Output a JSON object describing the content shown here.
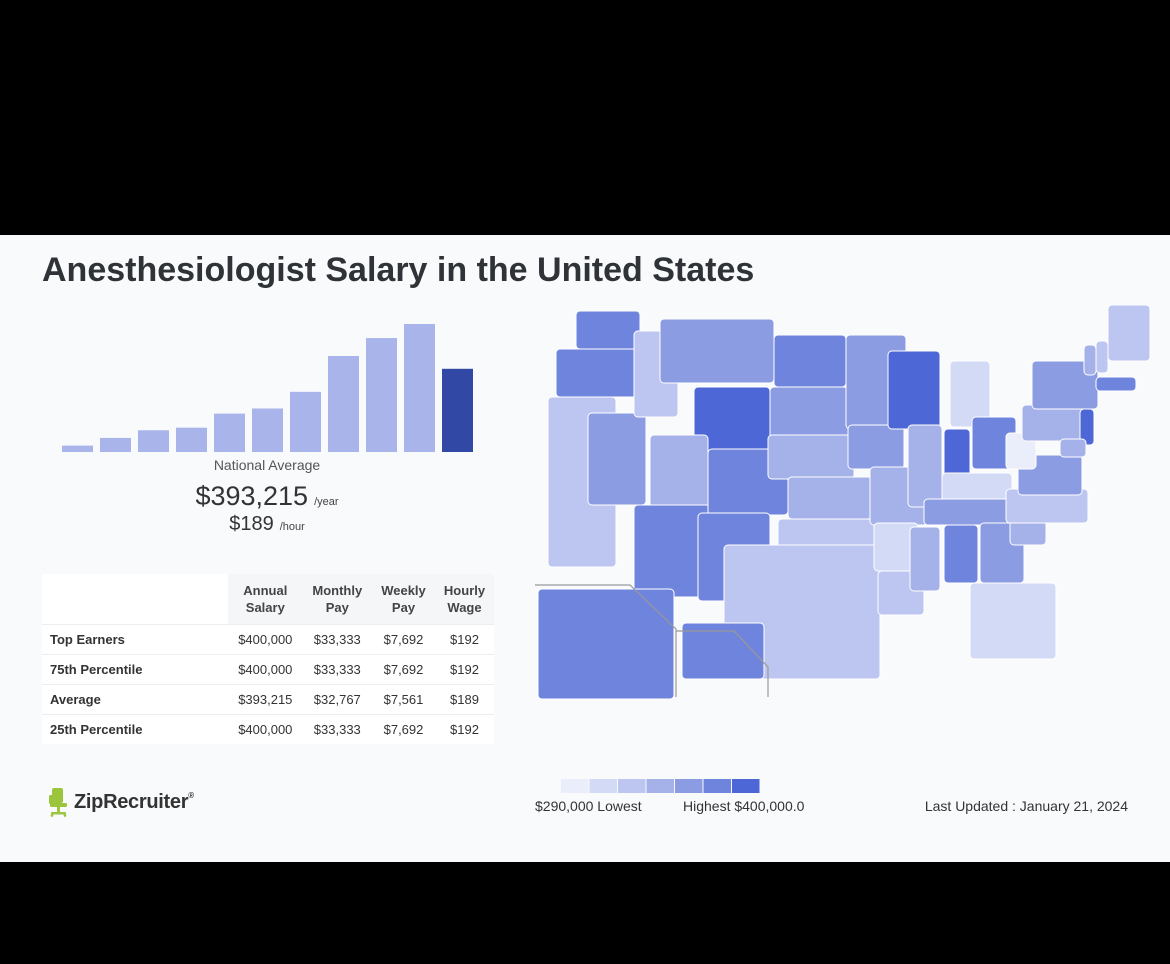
{
  "title": "Anesthesiologist Salary in the United States",
  "colors": {
    "bar_light": "#a9b5ea",
    "bar_highlight": "#3149a5",
    "scale": [
      "#eaedfa",
      "#d3daf5",
      "#bcc6f0",
      "#a5b2ea",
      "#8b9ce3",
      "#6f84dc",
      "#4e67d6"
    ]
  },
  "chart_data": [
    {
      "type": "bar",
      "highlight_index": 10,
      "values": [
        5,
        11,
        17,
        19,
        30,
        34,
        47,
        75,
        89,
        100,
        65
      ],
      "ylim": [
        0,
        100
      ]
    },
    {
      "type": "heatmap",
      "legend": {
        "low_label": "$290,000 Lowest",
        "high_label": "Highest $400,000.0",
        "steps": 7
      },
      "states": {
        "WA": 6,
        "OR": 6,
        "CA": 3,
        "NV": 5,
        "ID": 3,
        "MT": 5,
        "WY": 7,
        "UT": 4,
        "AZ": 6,
        "CO": 6,
        "NM": 6,
        "ND": 6,
        "SD": 5,
        "NE": 4,
        "KS": 4,
        "OK": 3,
        "TX": 3,
        "MN": 5,
        "IA": 5,
        "MO": 4,
        "AR": 2,
        "LA": 3,
        "WI": 7,
        "IL": 4,
        "MI": 2,
        "IN": 7,
        "OH": 6,
        "KY": 2,
        "TN": 5,
        "MS": 4,
        "AL": 6,
        "GA": 5,
        "FL": 2,
        "SC": 4,
        "NC": 3,
        "VA": 5,
        "WV": 1,
        "PA": 4,
        "NY": 5,
        "ME": 3,
        "VT": 4,
        "NH": 3,
        "MA": 6,
        "NJ": 7,
        "MD": 4,
        "AK": 6,
        "HI": 6
      }
    }
  ],
  "national_average": {
    "label": "National Average",
    "yearly": "$393,215",
    "yearly_unit": "/year",
    "hourly": "$189",
    "hourly_unit": "/hour"
  },
  "table": {
    "headers": [
      "Annual\nSalary",
      "Monthly\nPay",
      "Weekly\nPay",
      "Hourly\nWage"
    ],
    "rows": [
      {
        "label": "Top Earners",
        "values": [
          "$400,000",
          "$33,333",
          "$7,692",
          "$192"
        ]
      },
      {
        "label": "75th Percentile",
        "values": [
          "$400,000",
          "$33,333",
          "$7,692",
          "$192"
        ]
      },
      {
        "label": "Average",
        "values": [
          "$393,215",
          "$32,767",
          "$7,561",
          "$189"
        ]
      },
      {
        "label": "25th Percentile",
        "values": [
          "$400,000",
          "$33,333",
          "$7,692",
          "$192"
        ]
      }
    ]
  },
  "footer": {
    "logo_text": "ZipRecruiter",
    "logo_tm": "®",
    "last_updated": "Last Updated : January 21, 2024"
  }
}
